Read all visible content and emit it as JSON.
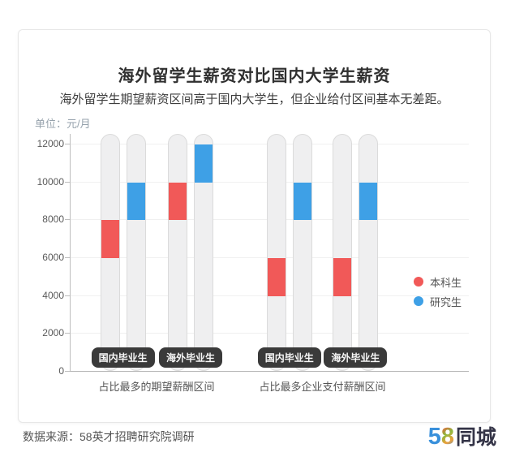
{
  "chart_data": {
    "type": "bar",
    "subtype": "floating-range-pill-bars",
    "title": "海外留学生薪资对比国内大学生薪资",
    "subtitle": "海外留学生期望薪资区间高于国内大学生，但企业给付区间基本无差距。",
    "unit_label": "单位：元/月",
    "ylabel": "元/月",
    "ylim": [
      0,
      12500
    ],
    "yticks": [
      0,
      2000,
      4000,
      6000,
      8000,
      10000,
      12000
    ],
    "grid": true,
    "legend_position": "right",
    "legend": [
      {
        "label": "本科生",
        "color": "#f15958"
      },
      {
        "label": "研究生",
        "color": "#3ea0e6"
      }
    ],
    "pill_bg_color": "#efeff0",
    "badge_bg_color": "#3a3a3a",
    "sections": [
      {
        "label": "占比最多的期望薪酬区间",
        "groups": [
          {
            "label": "国内毕业生",
            "bars": [
              {
                "series": "本科生",
                "range": [
                  6000,
                  8000
                ]
              },
              {
                "series": "研究生",
                "range": [
                  8000,
                  10000
                ]
              }
            ]
          },
          {
            "label": "海外毕业生",
            "bars": [
              {
                "series": "本科生",
                "range": [
                  8000,
                  10000
                ]
              },
              {
                "series": "研究生",
                "range": [
                  10000,
                  12000
                ]
              }
            ]
          }
        ]
      },
      {
        "label": "占比最多企业支付薪酬区间",
        "groups": [
          {
            "label": "国内毕业生",
            "bars": [
              {
                "series": "本科生",
                "range": [
                  4000,
                  6000
                ]
              },
              {
                "series": "研究生",
                "range": [
                  8000,
                  10000
                ]
              }
            ]
          },
          {
            "label": "海外毕业生",
            "bars": [
              {
                "series": "本科生",
                "range": [
                  4000,
                  6000
                ]
              },
              {
                "series": "研究生",
                "range": [
                  8000,
                  10000
                ]
              }
            ]
          }
        ]
      }
    ]
  },
  "footer": {
    "source": "数据来源：58英才招聘研究院调研",
    "logo": {
      "five": "5",
      "eight": "8",
      "suffix": "同城"
    }
  }
}
